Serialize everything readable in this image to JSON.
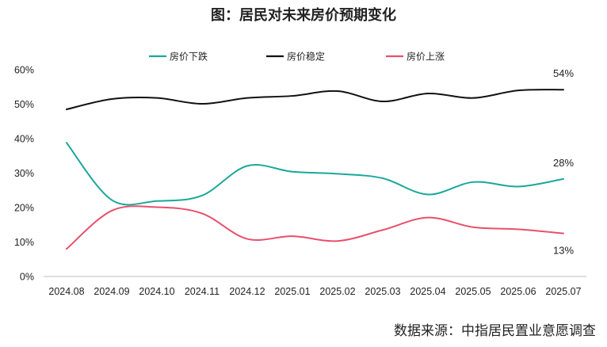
{
  "chart_data": {
    "type": "line",
    "title": "图：居民对未来房价预期变化",
    "categories": [
      "2024.08",
      "2024.09",
      "2024.10",
      "2024.11",
      "2024.12",
      "2025.01",
      "2025.02",
      "2025.03",
      "2025.04",
      "2025.05",
      "2025.06",
      "2025.07"
    ],
    "ylim": [
      0,
      60
    ],
    "yticks": [
      0,
      10,
      20,
      30,
      40,
      50,
      60
    ],
    "ytick_labels": [
      "0%",
      "10%",
      "20%",
      "30%",
      "40%",
      "50%",
      "60%"
    ],
    "grid": false,
    "legend_position": "top-center",
    "series": [
      {
        "name": "房价下跌",
        "color": "#1aa89a",
        "values": [
          38.8,
          22.2,
          21.9,
          23.5,
          32.1,
          30.4,
          29.8,
          28.5,
          23.8,
          27.4,
          26.1,
          28.3
        ],
        "end_label": "28%"
      },
      {
        "name": "房价稳定",
        "color": "#111111",
        "values": [
          48.5,
          51.5,
          51.8,
          50.1,
          51.8,
          52.4,
          53.8,
          50.8,
          53.1,
          51.8,
          54.0,
          54.2
        ],
        "end_label": "54%"
      },
      {
        "name": "房价上涨",
        "color": "#e8506c",
        "values": [
          8.0,
          19.1,
          20.1,
          18.3,
          10.9,
          11.7,
          10.3,
          13.5,
          17.1,
          14.3,
          13.7,
          12.5
        ],
        "end_label": "13%"
      }
    ],
    "source": "数据来源：中指居民置业意愿调查"
  }
}
